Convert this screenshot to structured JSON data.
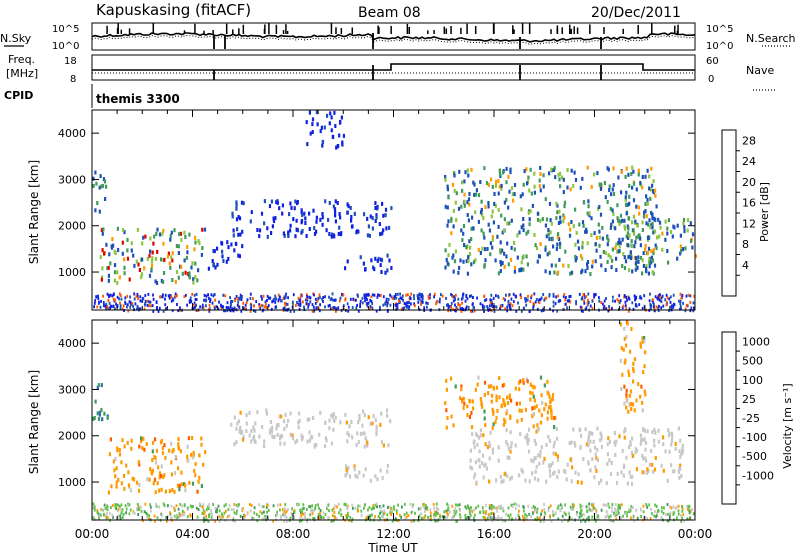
{
  "header": {
    "station": "Kapuskasing (fitACF)",
    "beam": "Beam 08",
    "date": "20/Dec/2011"
  },
  "top_panels": {
    "nsky_label": "N.Sky",
    "nsky_ticks": [
      "10^5",
      "10^0"
    ],
    "nsearch_label": "N.Search",
    "nsearch_ticks": [
      "10^5",
      "10^0"
    ],
    "freq_label_1": "Freq.",
    "freq_label_2": "[MHz]",
    "freq_ticks": [
      "18",
      "8"
    ],
    "nave_label": "Nave",
    "nave_ticks": [
      "60",
      "0"
    ],
    "cpid_label": "CPID",
    "cpid_value": "themis 3300"
  },
  "chart_data": [
    {
      "type": "heatmap",
      "name": "power",
      "ylabel": "Slant Range [km]",
      "xlabel": "Time UT",
      "ylim": [
        180,
        4500
      ],
      "y_ticks": [
        "4000",
        "3000",
        "2000",
        "1000"
      ],
      "x_ticks": [
        "00:00",
        "04:00",
        "08:00",
        "12:00",
        "16:00",
        "20:00",
        "00:00"
      ],
      "colorbar_label": "Power [dB]",
      "colorbar_ticks": [
        "28",
        "24",
        "20",
        "16",
        "12",
        "8",
        "4"
      ],
      "colorbar_colors": [
        "#e00000",
        "#ff5a00",
        "#ff9a00",
        "#e8d400",
        "#8cc63e",
        "#3f9a5a",
        "#1c4fb8",
        "#1020e0"
      ],
      "echo_regions": [
        {
          "t": [
            0.0,
            0.6
          ],
          "r": [
            2300,
            3200
          ],
          "level": "green-blue"
        },
        {
          "t": [
            0.3,
            4.5
          ],
          "r": [
            800,
            2000
          ],
          "level": "strong"
        },
        {
          "t": [
            4.5,
            6.0
          ],
          "r": [
            1100,
            1700
          ],
          "level": "weak"
        },
        {
          "t": [
            5.5,
            11.9
          ],
          "r": [
            1800,
            2600
          ],
          "level": "weak"
        },
        {
          "t": [
            8.5,
            10.0
          ],
          "r": [
            3700,
            4500
          ],
          "level": "weak"
        },
        {
          "t": [
            10.0,
            11.9
          ],
          "r": [
            1000,
            1400
          ],
          "level": "weak"
        },
        {
          "t": [
            14.0,
            22.5
          ],
          "r": [
            1000,
            3300
          ],
          "level": "medium"
        },
        {
          "t": [
            20.5,
            24.0
          ],
          "r": [
            1200,
            2200
          ],
          "level": "medium"
        }
      ]
    },
    {
      "type": "heatmap",
      "name": "velocity",
      "ylabel": "Slant Range [km]",
      "xlabel": "Time UT",
      "ylim": [
        180,
        4500
      ],
      "y_ticks": [
        "4000",
        "3000",
        "2000",
        "1000"
      ],
      "x_ticks": [
        "00:00",
        "04:00",
        "08:00",
        "12:00",
        "16:00",
        "20:00",
        "00:00"
      ],
      "colorbar_label": "Velocity [m s⁻¹]",
      "colorbar_ticks": [
        "1000",
        "500",
        "100",
        "25",
        "-25",
        "-100",
        "-500",
        "-1000"
      ],
      "colorbar_colors": [
        "#1030c0",
        "#2f6ab8",
        "#3f9a5a",
        "#5fc04a",
        "#c8c8c8",
        "#c8c8c8",
        "#ff9a00",
        "#ff5a00",
        "#e00000"
      ],
      "echo_regions": [
        {
          "t": [
            0.0,
            0.6
          ],
          "r": [
            2300,
            3200
          ],
          "level": "green"
        },
        {
          "t": [
            0.6,
            4.5
          ],
          "r": [
            800,
            2000
          ],
          "level": "orange"
        },
        {
          "t": [
            5.5,
            11.9
          ],
          "r": [
            1800,
            2600
          ],
          "level": "gray"
        },
        {
          "t": [
            10.0,
            11.9
          ],
          "r": [
            1000,
            1400
          ],
          "level": "gray"
        },
        {
          "t": [
            14.0,
            18.5
          ],
          "r": [
            2200,
            3300
          ],
          "level": "orange"
        },
        {
          "t": [
            15.0,
            23.5
          ],
          "r": [
            1000,
            2200
          ],
          "level": "gray"
        },
        {
          "t": [
            21.0,
            22.0
          ],
          "r": [
            2500,
            4500
          ],
          "level": "orange"
        }
      ]
    }
  ]
}
